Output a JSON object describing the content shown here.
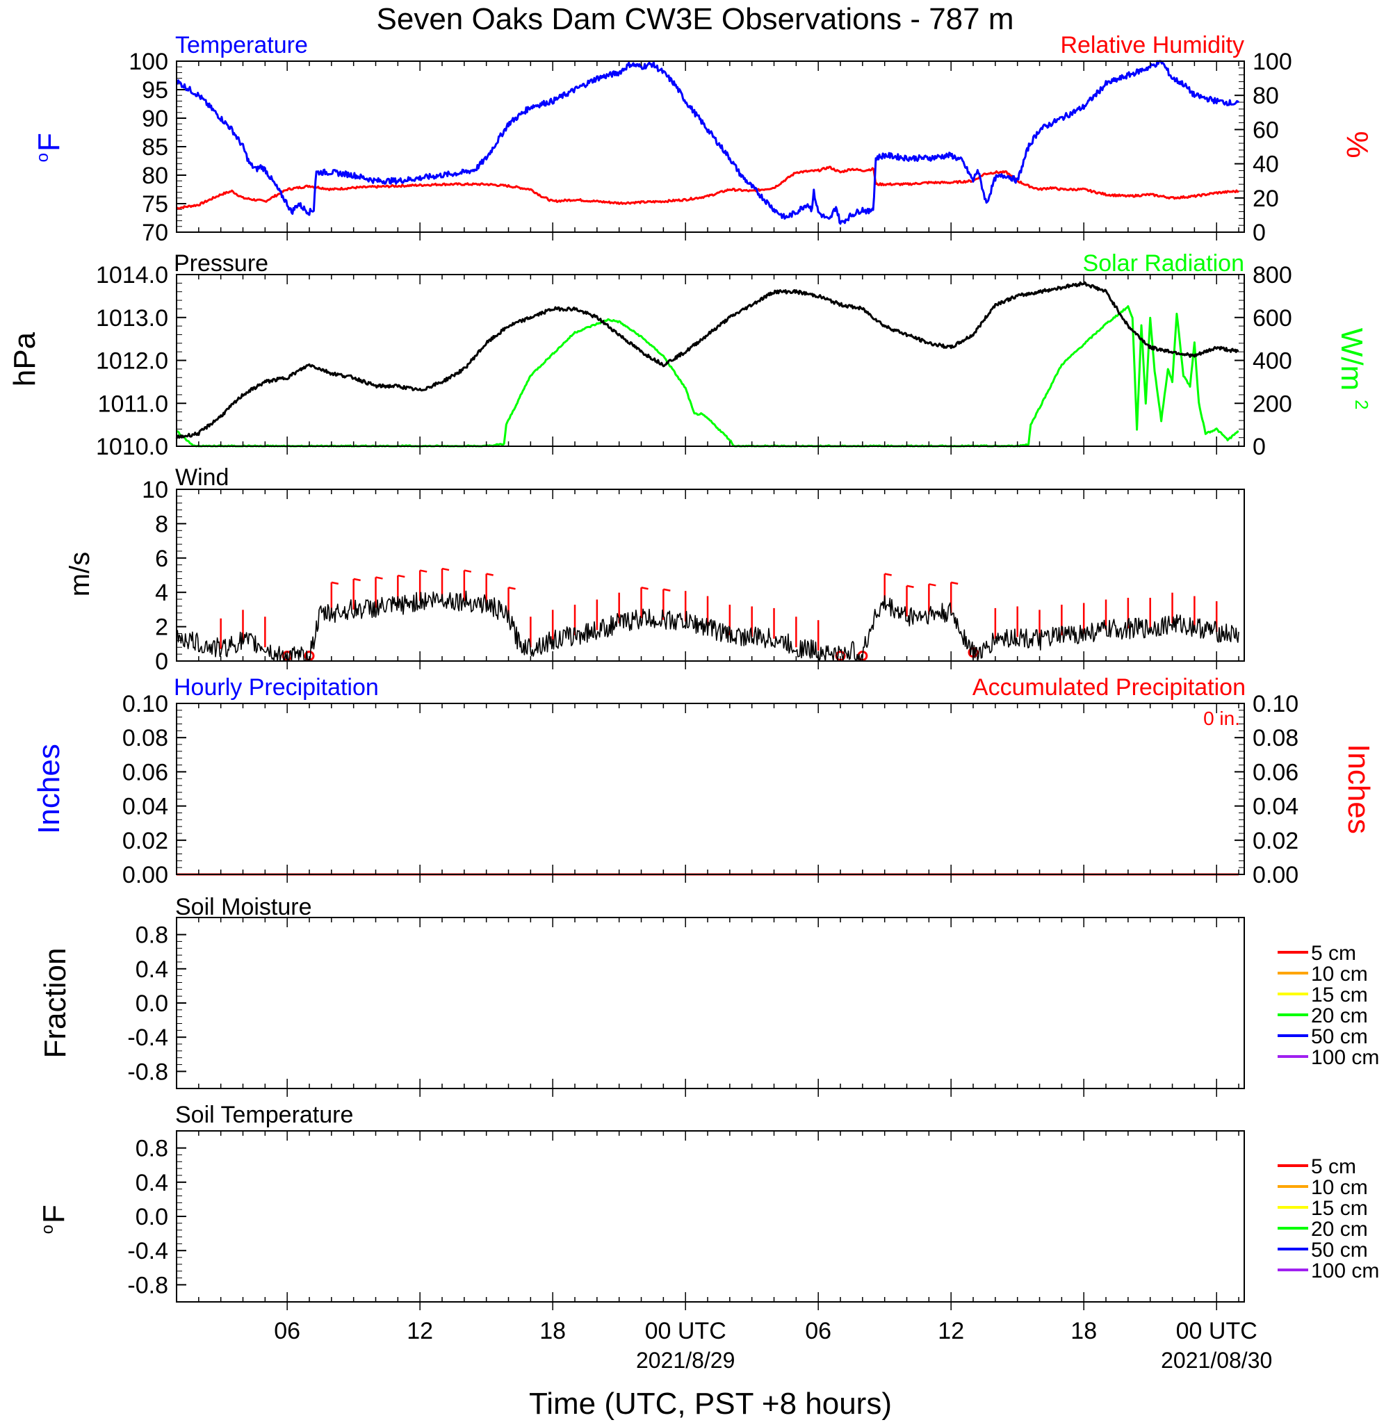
{
  "title": "Seven Oaks Dam CW3E Observations - 787 m",
  "x_axis": {
    "label": "Time (UTC, PST +8 hours)",
    "range_hours": [
      0,
      48.25
    ],
    "ticks": [
      {
        "h": 5,
        "label": "06"
      },
      {
        "h": 11,
        "label": "12"
      },
      {
        "h": 17,
        "label": "18"
      },
      {
        "h": 23,
        "label": "00 UTC",
        "date": "2021/8/29"
      },
      {
        "h": 29,
        "label": "06"
      },
      {
        "h": 35,
        "label": "12"
      },
      {
        "h": 41,
        "label": "18"
      },
      {
        "h": 47,
        "label": "00 UTC",
        "date": "2021/08/30"
      }
    ]
  },
  "panels": {
    "temperature": {
      "left_title": "Temperature",
      "right_title": "Relative Humidity",
      "left_label": "oF",
      "right_label": "%",
      "left_ticks": [
        "70",
        "75",
        "80",
        "85",
        "90",
        "95",
        "100"
      ],
      "right_ticks": [
        "0",
        "20",
        "40",
        "60",
        "80",
        "100"
      ]
    },
    "pressure": {
      "left_title": "Pressure",
      "right_title": "Solar Radiation",
      "left_label": "hPa",
      "right_label": "W/m",
      "right_label_sup": "2",
      "left_ticks": [
        "1010.0",
        "1011.0",
        "1012.0",
        "1013.0",
        "1014.0"
      ],
      "right_ticks": [
        "0",
        "200",
        "400",
        "600",
        "800"
      ]
    },
    "wind": {
      "left_title": "Wind",
      "left_label": "m/s",
      "left_ticks": [
        "0",
        "2",
        "4",
        "6",
        "8",
        "10"
      ]
    },
    "precip": {
      "left_title": "Hourly Precipitation",
      "right_title": "Accumulated Precipitation",
      "total": "0 in.",
      "left_label": "Inches",
      "right_label": "Inches",
      "left_ticks": [
        "0.00",
        "0.02",
        "0.04",
        "0.06",
        "0.08",
        "0.10"
      ],
      "right_ticks": [
        "0.00",
        "0.02",
        "0.04",
        "0.06",
        "0.08",
        "0.10"
      ]
    },
    "soil_moisture": {
      "left_title": "Soil Moisture",
      "left_label": "Fraction",
      "left_ticks": [
        "-0.8",
        "-0.4",
        "0.0",
        "0.4",
        "0.8"
      ],
      "legend": [
        {
          "label": "5 cm",
          "color": "#ff0000"
        },
        {
          "label": "10 cm",
          "color": "#ffa500"
        },
        {
          "label": "15 cm",
          "color": "#ffff00"
        },
        {
          "label": "20 cm",
          "color": "#00ff00"
        },
        {
          "label": "50 cm",
          "color": "#0000ff"
        },
        {
          "label": "100 cm",
          "color": "#a020f0"
        }
      ]
    },
    "soil_temperature": {
      "left_title": "Soil Temperature",
      "left_label": "oF",
      "left_ticks": [
        "-0.8",
        "-0.4",
        "0.0",
        "0.4",
        "0.8"
      ],
      "legend": [
        {
          "label": "5 cm",
          "color": "#ff0000"
        },
        {
          "label": "10 cm",
          "color": "#ffa500"
        },
        {
          "label": "15 cm",
          "color": "#ffff00"
        },
        {
          "label": "20 cm",
          "color": "#00ff00"
        },
        {
          "label": "50 cm",
          "color": "#0000ff"
        },
        {
          "label": "100 cm",
          "color": "#a020f0"
        }
      ]
    }
  },
  "colors": {
    "temperature": "#0000ff",
    "humidity": "#ff0000",
    "pressure": "#000000",
    "solar": "#00ff00",
    "wind": "#000000",
    "barb": "#ff0000",
    "hourly_precip": "#0000ff",
    "accum_precip": "#ff0000"
  },
  "chart_data": [
    {
      "type": "line",
      "title": "Temperature",
      "ylabel": "oF",
      "ylim": [
        70,
        100
      ],
      "x_units": "hours since 2021-08-28 01 UTC",
      "series": [
        {
          "name": "Temperature",
          "x": [
            0,
            1,
            2,
            2.5,
            3,
            3.3,
            3.6,
            3.8,
            4,
            4.5,
            5,
            5.2,
            5.5,
            5.8,
            6,
            6.2,
            6.3,
            7,
            8,
            9,
            10,
            11,
            12,
            13,
            13.5,
            14,
            15,
            16,
            17,
            18,
            19,
            20,
            20.5,
            21,
            21.5,
            22,
            22.5,
            23,
            24,
            25,
            25.5,
            26,
            26.5,
            27,
            27.5,
            28,
            28.5,
            28.7,
            28.8,
            29,
            29.5,
            29.8,
            30,
            30.5,
            31,
            31.3,
            31.5,
            31.6,
            32,
            33,
            34,
            35,
            35.5,
            36,
            36.2,
            36.4,
            36.6,
            37,
            37.5,
            38,
            38.5,
            39,
            40,
            41,
            41.5,
            42,
            43,
            44,
            44.5,
            45,
            45.5,
            46,
            47,
            48
          ],
          "y": [
            96.5,
            94,
            90,
            88,
            85,
            82,
            81,
            81.5,
            81,
            78,
            75,
            73.5,
            75,
            74,
            73.5,
            74,
            80.5,
            80.5,
            80,
            79,
            79,
            79.5,
            80,
            80.5,
            81,
            83,
            89,
            92,
            93,
            95,
            97,
            98,
            99.5,
            99,
            99.5,
            98,
            96,
            93,
            88,
            83,
            80,
            78,
            76,
            74,
            72.5,
            73.5,
            75,
            74,
            77,
            73.5,
            72,
            74.5,
            71.5,
            73,
            74,
            73.5,
            74.5,
            83,
            83.5,
            83,
            83,
            83.5,
            82.5,
            79,
            81,
            78,
            75,
            79.5,
            80,
            79,
            85,
            88,
            90,
            92,
            94,
            96,
            97.5,
            99,
            100,
            97,
            96,
            94,
            93,
            92.5
          ]
        },
        {
          "name": "Relative Humidity",
          "x": [
            0,
            1,
            2,
            2.5,
            3,
            4,
            5,
            6,
            7,
            8,
            10,
            12,
            13,
            14,
            15,
            16,
            16.5,
            17,
            18,
            20,
            22,
            23,
            24,
            25,
            26,
            26.5,
            27,
            28,
            29,
            29.5,
            30,
            30.5,
            31,
            31.5,
            31.6,
            32,
            33,
            34,
            35,
            36,
            36.5,
            37,
            37.5,
            38,
            38.5,
            39,
            39.5,
            40,
            41,
            42,
            43,
            44,
            45,
            46,
            47,
            48
          ],
          "y": [
            14,
            16,
            22,
            24,
            20,
            18,
            25,
            27,
            25,
            26,
            27,
            28,
            28,
            28,
            27,
            25,
            21,
            18,
            19,
            17,
            18,
            19,
            21,
            25,
            24,
            25,
            26,
            35,
            36,
            38,
            35,
            37,
            36,
            37,
            28,
            28,
            28,
            29,
            29,
            30,
            34,
            35,
            35,
            30,
            27,
            25,
            26,
            25,
            25,
            22,
            21,
            22,
            20,
            21,
            23,
            24
          ]
        }
      ]
    },
    {
      "type": "line",
      "title": "Pressure",
      "ylabel": "hPa",
      "ylim": [
        1010,
        1014
      ],
      "x_units": "hours since 2021-08-28 01 UTC",
      "series": [
        {
          "name": "Pressure",
          "x": [
            0,
            1,
            2,
            3,
            4,
            5,
            6,
            7,
            8,
            9,
            10,
            11,
            12,
            13,
            14,
            15,
            16,
            17,
            18,
            19,
            20,
            21,
            22,
            23,
            24,
            25,
            26,
            27,
            28,
            29,
            30,
            31,
            32,
            33,
            34,
            35,
            36,
            37,
            38,
            39,
            40,
            41,
            42,
            43,
            44,
            45,
            46,
            47,
            48
          ],
          "y": [
            1010.2,
            1010.3,
            1010.7,
            1011.2,
            1011.5,
            1011.6,
            1011.9,
            1011.7,
            1011.6,
            1011.4,
            1011.4,
            1011.3,
            1011.5,
            1011.8,
            1012.4,
            1012.8,
            1013.0,
            1013.2,
            1013.2,
            1013.0,
            1012.6,
            1012.2,
            1011.9,
            1012.2,
            1012.6,
            1013.0,
            1013.3,
            1013.6,
            1013.6,
            1013.5,
            1013.3,
            1013.2,
            1012.8,
            1012.6,
            1012.4,
            1012.3,
            1012.6,
            1013.3,
            1013.5,
            1013.6,
            1013.7,
            1013.8,
            1013.6,
            1012.8,
            1012.3,
            1012.2,
            1012.1,
            1012.3,
            1012.2
          ]
        },
        {
          "name": "Solar Radiation",
          "x": [
            0,
            0.8,
            1,
            14,
            14.8,
            14.9,
            16,
            18,
            19,
            19.5,
            20,
            21,
            22,
            23,
            23.4,
            23.7,
            24,
            25,
            25.2,
            26,
            38,
            38.5,
            38.6,
            40,
            42,
            43,
            43.2,
            43.4,
            43.6,
            43.8,
            44,
            44.2,
            44.5,
            44.8,
            45,
            45.2,
            45.5,
            45.8,
            46,
            46.2,
            46.5,
            47,
            47.5,
            48
          ],
          "y": [
            70,
            0,
            0,
            0,
            10,
            100,
            330,
            530,
            570,
            590,
            580,
            510,
            420,
            270,
            150,
            150,
            130,
            30,
            0,
            0,
            0,
            10,
            100,
            380,
            570,
            650,
            600,
            80,
            560,
            200,
            600,
            350,
            120,
            360,
            300,
            620,
            330,
            280,
            480,
            200,
            60,
            80,
            30,
            70
          ]
        }
      ]
    },
    {
      "type": "line",
      "title": "Wind",
      "ylabel": "m/s",
      "ylim": [
        0,
        10
      ],
      "x_units": "hours since 2021-08-28 01 UTC",
      "series": [
        {
          "name": "Wind",
          "x": [
            0,
            1,
            2,
            3,
            4,
            4.5,
            5,
            5.5,
            6,
            6.5,
            7,
            8,
            9,
            10,
            11,
            12,
            13,
            14,
            14.5,
            15,
            15.5,
            16,
            17,
            18,
            19,
            20,
            21,
            22,
            23,
            24,
            25,
            26,
            27,
            28,
            29,
            30,
            30.5,
            31,
            31.5,
            32,
            33,
            34,
            35,
            36,
            36.5,
            37,
            38,
            39,
            40,
            41,
            42,
            43,
            44,
            45,
            46,
            47,
            48
          ],
          "y": [
            1.5,
            1,
            0.7,
            1.2,
            0.8,
            0.3,
            0.3,
            0.2,
            0.3,
            2.7,
            2.8,
            3,
            3.1,
            3.2,
            3.5,
            3.6,
            3.5,
            3.3,
            3,
            2.5,
            1,
            0.8,
            1.2,
            1.5,
            1.8,
            2.2,
            2.5,
            2.4,
            2.3,
            2,
            1.5,
            1.4,
            1.3,
            0.8,
            0.6,
            0.3,
            0.6,
            0.3,
            2.5,
            3.3,
            2.6,
            2.7,
            2.8,
            0.5,
            0.5,
            1.3,
            1.4,
            1.2,
            1.5,
            1.6,
            1.8,
            1.9,
            1.9,
            2.2,
            2,
            1.7,
            1.5
          ]
        }
      ]
    },
    {
      "type": "line",
      "title": "Hourly Precipitation",
      "ylabel": "Inches",
      "ylim": [
        0,
        0.1
      ],
      "x_units": "hours since 2021-08-28 01 UTC",
      "series": [
        {
          "name": "Hourly Precipitation",
          "x": [
            0,
            48.25
          ],
          "y": [
            0,
            0
          ]
        },
        {
          "name": "Accumulated Precipitation",
          "x": [
            0,
            48.25
          ],
          "y": [
            0,
            0
          ]
        }
      ]
    }
  ]
}
